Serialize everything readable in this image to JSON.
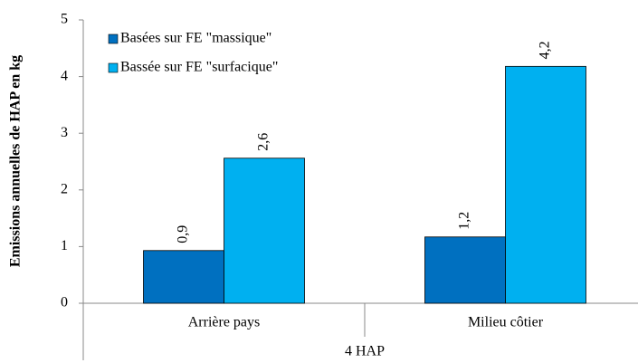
{
  "chart_data": {
    "type": "bar",
    "ylabel": "Emissions annuelles de HAP en kg",
    "xgroup_label": "4 HAP",
    "categories": [
      "Arrière pays",
      "Milieu côtier"
    ],
    "series": [
      {
        "name": "Basées sur FE \"massique\"",
        "color": "#0070c0",
        "values": [
          0.93,
          1.17
        ],
        "value_labels": [
          "0,9",
          "1,2"
        ]
      },
      {
        "name": "Bassée sur FE \"surfacique\"",
        "color": "#00b0f0",
        "values": [
          2.56,
          4.18
        ],
        "value_labels": [
          "2,6",
          "4,2"
        ]
      }
    ],
    "ylim": [
      0,
      5
    ],
    "yticks": [
      0,
      1,
      2,
      3,
      4,
      5
    ],
    "legend": "upper left"
  }
}
